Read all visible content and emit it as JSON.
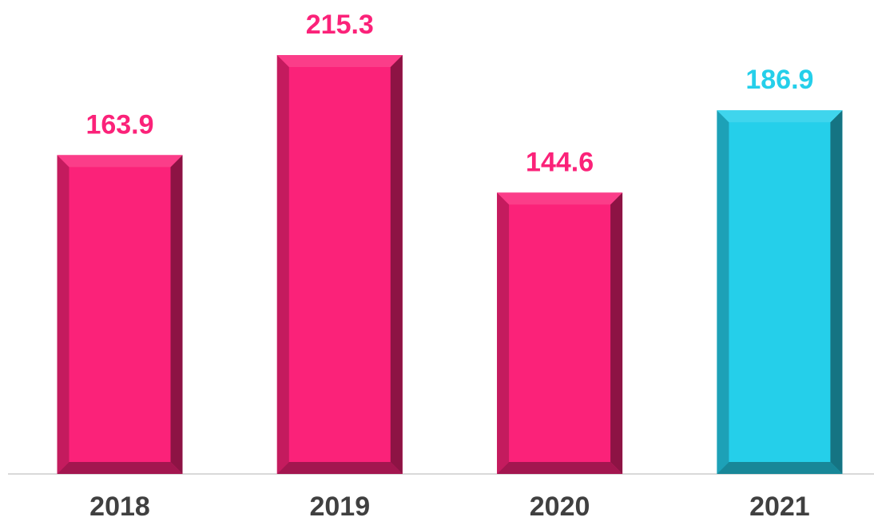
{
  "chart_data": {
    "type": "bar",
    "categories": [
      "2018",
      "2019",
      "2020",
      "2021"
    ],
    "values": [
      163.9,
      215.3,
      144.6,
      186.9
    ],
    "colors": [
      "#fb2279",
      "#fb2279",
      "#fb2279",
      "#25cfea"
    ]
  }
}
